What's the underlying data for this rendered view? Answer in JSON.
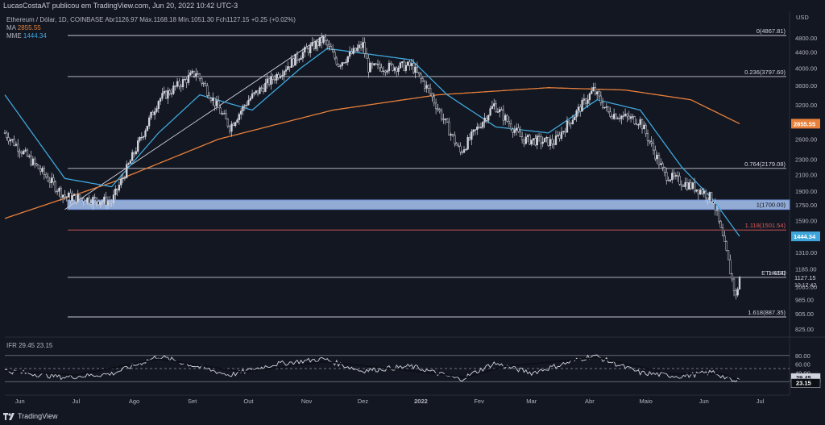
{
  "header": {
    "publisher": "LucasCostaAT publicou em TradingView.com, Jun 20, 2022 10:42 UTC-3"
  },
  "legend": {
    "symbol_line": "Ethereum / Dólar, 1D, COINBASE  Abr1126.97  Máx.1168.18  Mín.1051.30  Fch1127.15  +0.25 (+0.02%)",
    "ma_label": "MA",
    "ma_value": "2855.55",
    "mme_label": "MME",
    "mme_value": "1444.34",
    "ifr_line": "IFR  29.45  23.15"
  },
  "footer": {
    "brand": "TradingView"
  },
  "colors": {
    "background": "#131722",
    "up": "#d1d4dc",
    "down": "#0b0e14",
    "ma": "#e8803a",
    "mme": "#3fa6db",
    "fib_red": "#e05b5b",
    "zone_fill": "#a9c5f5",
    "zone_border": "#6f8fd6"
  },
  "chart_data": [
    {
      "type": "candlestick",
      "symbol": "ETHUSD",
      "title": "Ethereum / Dólar, 1D, COINBASE",
      "ohlc": {
        "open": 1126.97,
        "high": 1168.18,
        "low": 1051.3,
        "close": 1127.15,
        "change": "+0.25 (+0.02%)"
      },
      "y_axis": {
        "unit": "USD",
        "scale": "log",
        "ticks": [
          4800,
          4400,
          4000,
          3600,
          3200,
          2900,
          2600,
          2300,
          2100,
          1900,
          1750,
          1590,
          1440,
          1310,
          1185,
          1065,
          985,
          905,
          825
        ]
      },
      "x_axis": {
        "ticks": [
          "Jun",
          "Jul",
          "Ago",
          "Set",
          "Out",
          "Nov",
          "Dez",
          "2022",
          "Fev",
          "Mar",
          "Abr",
          "Maio",
          "Jun",
          "Jul"
        ]
      },
      "fib_levels": [
        {
          "label": "0(4867.81)",
          "value": 4867.81
        },
        {
          "label": "0.236(3797.60)",
          "value": 3797.6
        },
        {
          "label": "0.764(2179.08)",
          "value": 2179.08
        },
        {
          "label": "1(1700.00)",
          "value": 1700.0
        },
        {
          "label": "1.118(1501.54)",
          "value": 1501.54
        },
        {
          "label": "1.414(",
          "value": 1127
        },
        {
          "label": "1.618(887.35)",
          "value": 887.35
        }
      ],
      "support_zone": {
        "from": 1700,
        "to": 1800
      },
      "price_labels": [
        {
          "text": "2855.55",
          "value": 2855.55,
          "color": "#e8803a"
        },
        {
          "text": "1444.34",
          "value": 1444.34,
          "color": "#3fa6db"
        }
      ],
      "current_price": {
        "text": "1127.15",
        "symbol_tag": "ETHUSD",
        "countdown": "10:17:42"
      },
      "anchors": [
        {
          "date": "2021-05-24",
          "price": 2700
        },
        {
          "date": "2021-06-25",
          "price": 1840
        },
        {
          "date": "2021-07-20",
          "price": 1780
        },
        {
          "date": "2021-08-14",
          "price": 3300
        },
        {
          "date": "2021-09-03",
          "price": 3900
        },
        {
          "date": "2021-09-21",
          "price": 2800
        },
        {
          "date": "2021-10-01",
          "price": 3300
        },
        {
          "date": "2021-10-29",
          "price": 4350
        },
        {
          "date": "2021-11-10",
          "price": 4750
        },
        {
          "date": "2021-11-18",
          "price": 4100
        },
        {
          "date": "2021-12-01",
          "price": 4600
        },
        {
          "date": "2021-12-04",
          "price": 4000
        },
        {
          "date": "2021-12-27",
          "price": 4050
        },
        {
          "date": "2022-01-05",
          "price": 3500
        },
        {
          "date": "2022-01-22",
          "price": 2400
        },
        {
          "date": "2022-02-09",
          "price": 3200
        },
        {
          "date": "2022-02-24",
          "price": 2600
        },
        {
          "date": "2022-03-13",
          "price": 2550
        },
        {
          "date": "2022-04-03",
          "price": 3500
        },
        {
          "date": "2022-04-11",
          "price": 3050
        },
        {
          "date": "2022-04-28",
          "price": 2900
        },
        {
          "date": "2022-05-11",
          "price": 2100
        },
        {
          "date": "2022-05-31",
          "price": 1900
        },
        {
          "date": "2022-06-06",
          "price": 1800
        },
        {
          "date": "2022-06-13",
          "price": 1300
        },
        {
          "date": "2022-06-18",
          "price": 1000
        },
        {
          "date": "2022-06-20",
          "price": 1127
        }
      ],
      "ma_anchors": [
        {
          "date": "2021-05-24",
          "price": 1610
        },
        {
          "date": "2021-07-20",
          "price": 2000
        },
        {
          "date": "2021-09-15",
          "price": 2600
        },
        {
          "date": "2021-11-15",
          "price": 3100
        },
        {
          "date": "2022-01-10",
          "price": 3400
        },
        {
          "date": "2022-03-10",
          "price": 3550
        },
        {
          "date": "2022-04-20",
          "price": 3500
        },
        {
          "date": "2022-05-25",
          "price": 3300
        },
        {
          "date": "2022-06-20",
          "price": 2855.55
        }
      ],
      "mme_anchors": [
        {
          "date": "2021-05-24",
          "price": 3400
        },
        {
          "date": "2021-06-25",
          "price": 2050
        },
        {
          "date": "2021-07-20",
          "price": 1950
        },
        {
          "date": "2021-08-14",
          "price": 2700
        },
        {
          "date": "2021-09-05",
          "price": 3400
        },
        {
          "date": "2021-10-03",
          "price": 3100
        },
        {
          "date": "2021-10-29",
          "price": 4000
        },
        {
          "date": "2021-11-12",
          "price": 4500
        },
        {
          "date": "2021-12-27",
          "price": 4200
        },
        {
          "date": "2022-01-15",
          "price": 3400
        },
        {
          "date": "2022-02-10",
          "price": 2800
        },
        {
          "date": "2022-03-10",
          "price": 2700
        },
        {
          "date": "2022-04-05",
          "price": 3300
        },
        {
          "date": "2022-04-28",
          "price": 3100
        },
        {
          "date": "2022-05-20",
          "price": 2200
        },
        {
          "date": "2022-06-06",
          "price": 1800
        },
        {
          "date": "2022-06-20",
          "price": 1444.34
        }
      ],
      "trendline": [
        {
          "date": "2021-06-25",
          "price": 1700
        },
        {
          "date": "2021-11-10",
          "price": 4860
        }
      ]
    },
    {
      "type": "line",
      "title": "IFR",
      "values_label": "29.45  23.15",
      "y_axis": {
        "ticks": [
          80,
          60,
          40,
          20
        ],
        "bands": [
          80,
          50,
          20
        ]
      },
      "series": [
        {
          "name": "IFR",
          "value": 29.45,
          "color": "#d1d4dc"
        },
        {
          "name": "",
          "value": 23.15,
          "color": "#131722"
        }
      ],
      "anchors": [
        {
          "date": "2021-05-24",
          "value": 45
        },
        {
          "date": "2021-06-25",
          "value": 30
        },
        {
          "date": "2021-07-20",
          "value": 38
        },
        {
          "date": "2021-08-14",
          "value": 78
        },
        {
          "date": "2021-09-21",
          "value": 35
        },
        {
          "date": "2021-10-15",
          "value": 60
        },
        {
          "date": "2021-11-10",
          "value": 72
        },
        {
          "date": "2021-11-30",
          "value": 45
        },
        {
          "date": "2021-12-27",
          "value": 55
        },
        {
          "date": "2022-01-22",
          "value": 25
        },
        {
          "date": "2022-02-09",
          "value": 62
        },
        {
          "date": "2022-03-01",
          "value": 40
        },
        {
          "date": "2022-04-03",
          "value": 80
        },
        {
          "date": "2022-04-28",
          "value": 40
        },
        {
          "date": "2022-05-20",
          "value": 32
        },
        {
          "date": "2022-06-06",
          "value": 42
        },
        {
          "date": "2022-06-18",
          "value": 18
        },
        {
          "date": "2022-06-20",
          "value": 29.45
        }
      ],
      "signal_anchors": [
        {
          "date": "2021-05-24",
          "value": 45
        },
        {
          "date": "2021-07-01",
          "value": 35
        },
        {
          "date": "2021-08-14",
          "value": 72
        },
        {
          "date": "2021-09-28",
          "value": 42
        },
        {
          "date": "2021-11-10",
          "value": 66
        },
        {
          "date": "2021-12-20",
          "value": 48
        },
        {
          "date": "2022-01-25",
          "value": 30
        },
        {
          "date": "2022-02-15",
          "value": 55
        },
        {
          "date": "2022-04-05",
          "value": 75
        },
        {
          "date": "2022-05-15",
          "value": 38
        },
        {
          "date": "2022-06-10",
          "value": 38
        },
        {
          "date": "2022-06-20",
          "value": 23.15
        }
      ]
    }
  ]
}
